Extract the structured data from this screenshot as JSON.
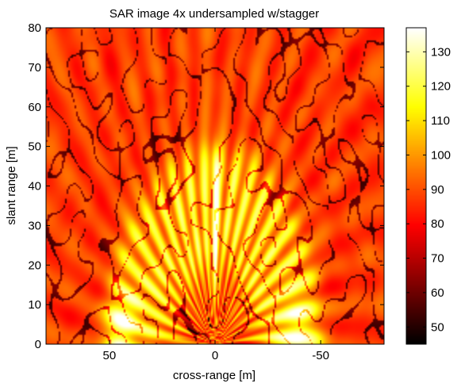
{
  "chart_data": {
    "type": "heatmap",
    "title": "SAR image 4x undersampled w/stagger",
    "xlabel": "cross-range [m]",
    "ylabel": "slant range [m]",
    "xlim": [
      80,
      -80
    ],
    "ylim": [
      0,
      80
    ],
    "x_ticks": [
      50,
      0,
      -50
    ],
    "x_tick_labels": [
      "50",
      "0",
      "-50"
    ],
    "y_ticks": [
      0,
      10,
      20,
      30,
      40,
      50,
      60,
      70,
      80
    ],
    "y_tick_labels": [
      "0",
      "10",
      "20",
      "30",
      "40",
      "50",
      "60",
      "70",
      "80"
    ],
    "colorbar": {
      "range": [
        45,
        137
      ],
      "ticks": [
        50,
        60,
        70,
        80,
        90,
        100,
        110,
        120,
        130
      ],
      "tick_labels": [
        "50",
        "60",
        "70",
        "80",
        "90",
        "100",
        "110",
        "120",
        "130"
      ],
      "colormap": "hot"
    },
    "features": {
      "background_level": 88,
      "bright_lobe": {
        "center_x": 0,
        "center_y": 0,
        "radius_m": 50,
        "peak_level": 137,
        "level": 108
      },
      "side_lobes": [
        {
          "center_x": 45,
          "peak_level": 112
        },
        {
          "center_x": -38,
          "peak_level": 108
        }
      ]
    }
  }
}
